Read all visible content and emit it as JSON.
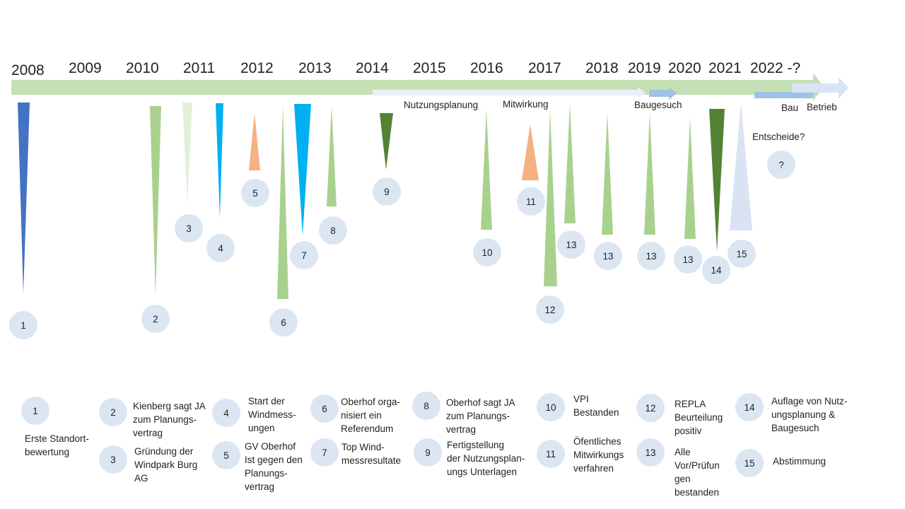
{
  "years": [
    "2008",
    "2009",
    "2010",
    "2011",
    "2012",
    "2013",
    "2014",
    "2015",
    "2016",
    "2017",
    "2018",
    "2019",
    "2020",
    "2021",
    "2022 -?"
  ],
  "phases": {
    "nutzungsplanung": "Nutzungsplanung",
    "mitwirkung": "Mitwirkung",
    "baugesuch": "Baugesuch",
    "bau": "Bau",
    "betrieb": "Betrieb"
  },
  "entscheide": "Entscheide?",
  "question_mark": "?",
  "events": [
    {
      "number": "1"
    },
    {
      "number": "2"
    },
    {
      "number": "3"
    },
    {
      "number": "4"
    },
    {
      "number": "5"
    },
    {
      "number": "6"
    },
    {
      "number": "7"
    },
    {
      "number": "8"
    },
    {
      "number": "9"
    },
    {
      "number": "10"
    },
    {
      "number": "11"
    },
    {
      "number": "12"
    },
    {
      "number": "13"
    },
    {
      "number": "13"
    },
    {
      "number": "13"
    },
    {
      "number": "13"
    },
    {
      "number": "14"
    },
    {
      "number": "15"
    }
  ],
  "legend": [
    {
      "number": "1",
      "text": "Erste Standort-\nbewertung"
    },
    {
      "number": "2",
      "text": "Kienberg sagt JA\nzum Planungs-\nvertrag"
    },
    {
      "number": "3",
      "text": "Gründung der\nWindpark Burg\nAG"
    },
    {
      "number": "4",
      "text": "Start der\nWindmess-\nungen"
    },
    {
      "number": "5",
      "text": "GV Oberhof\nIst gegen den\nPlanungs-\nvertrag"
    },
    {
      "number": "6",
      "text": "Oberhof orga-\nnisiert ein\nReferendum"
    },
    {
      "number": "7",
      "text": "Top Wind-\nmessresultate"
    },
    {
      "number": "8",
      "text": "Oberhof sagt JA\nzum Planungs-\nvertrag"
    },
    {
      "number": "9",
      "text": "Fertigstellung\nder Nutzungsplan-\nungs Unterlagen"
    },
    {
      "number": "10",
      "text": "VPI\nBestanden"
    },
    {
      "number": "11",
      "text": "Öfentliches\nMitwirkungs\nverfahren"
    },
    {
      "number": "12",
      "text": "REPLA\nBeurteilung\npositiv"
    },
    {
      "number": "13",
      "text": "Alle\nVor/Prüfun\ngen\nbestanden"
    },
    {
      "number": "14",
      "text": "Auflage von Nutz-\nungsplanung &\nBaugesuch"
    },
    {
      "number": "15",
      "text": "Abstimmung"
    }
  ],
  "colors": {
    "timeline_green": "#c5e0b4",
    "bar_green": "#a9d18e",
    "light_green": "#e2f0d9",
    "dark_green": "#548235",
    "blue": "#4472c4",
    "cyan": "#00b0f0",
    "orange": "#f4b183",
    "pale_blue": "#dae3f3",
    "phase_blue": "#9dc3e6",
    "circle": "#dce6f2"
  }
}
